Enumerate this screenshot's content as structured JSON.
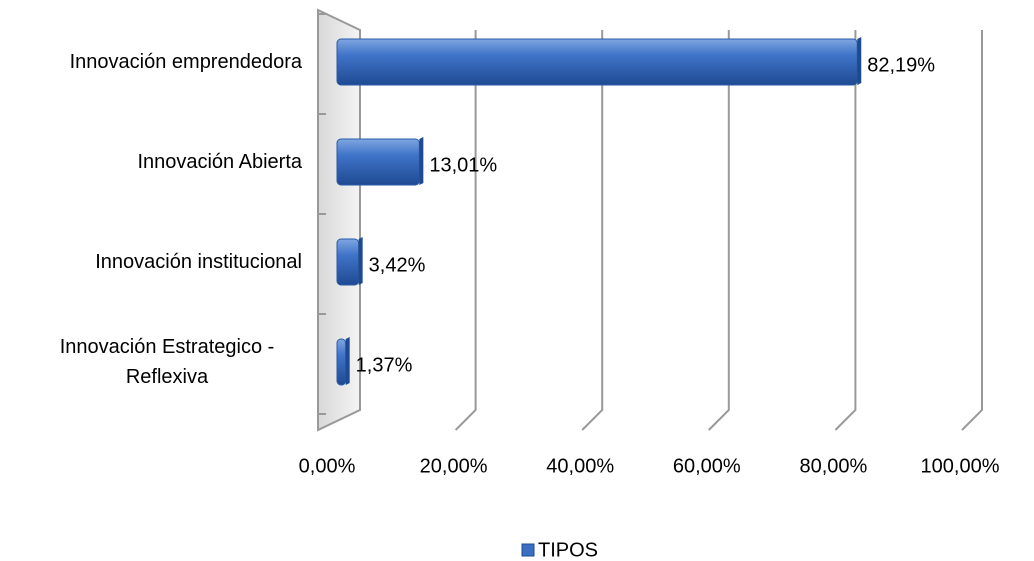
{
  "chart_data": {
    "type": "bar",
    "orientation": "horizontal",
    "categories": [
      "Innovación emprendedora",
      "Innovación Abierta",
      "Innovación institucional",
      "Innovación Estrategico - Reflexiva"
    ],
    "series": [
      {
        "name": "TIPOS",
        "color": "#3a6fc4",
        "values": [
          82.19,
          13.01,
          3.42,
          1.37
        ],
        "value_labels": [
          "82,19%",
          "13,01%",
          "3,42%",
          "1,37%"
        ]
      }
    ],
    "xlim": [
      0,
      100
    ],
    "xticks": [
      {
        "value": 0,
        "label": "0,00%"
      },
      {
        "value": 20,
        "label": "20,00%"
      },
      {
        "value": 40,
        "label": "40,00%"
      },
      {
        "value": 60,
        "label": "60,00%"
      },
      {
        "value": 80,
        "label": "80,00%"
      },
      {
        "value": 100,
        "label": "100,00%"
      }
    ],
    "grid": true,
    "legend": "bottom"
  }
}
